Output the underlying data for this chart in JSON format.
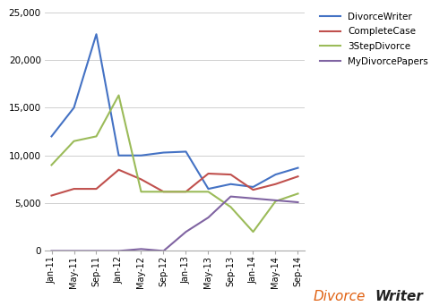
{
  "x_labels": [
    "Jan-11",
    "May-11",
    "Sep-11",
    "Jan-12",
    "May-12",
    "Sep-12",
    "Jan-13",
    "May-13",
    "Sep-13",
    "Jan-14",
    "May-14",
    "Sep-14"
  ],
  "DivorceWriter": [
    12000,
    15000,
    22700,
    10000,
    10000,
    10300,
    10400,
    6500,
    7000,
    6700,
    8000,
    8700
  ],
  "CompleteCase": [
    5800,
    6500,
    6500,
    8500,
    7500,
    6200,
    6200,
    8100,
    8000,
    6400,
    7000,
    7800
  ],
  "3StepDivorce": [
    9000,
    11500,
    12000,
    16300,
    6200,
    6200,
    6200,
    6200,
    4600,
    2000,
    5200,
    6000
  ],
  "MyDivorcePapers": [
    0,
    0,
    0,
    0,
    200,
    0,
    2000,
    3500,
    5700,
    5500,
    5300,
    5100
  ],
  "colors": {
    "DivorceWriter": "#4472C4",
    "CompleteCase": "#C0504D",
    "3StepDivorce": "#9BBB59",
    "MyDivorcePapers": "#8064A2"
  },
  "ylim": [
    0,
    25000
  ],
  "yticks": [
    0,
    5000,
    10000,
    15000,
    20000,
    25000
  ],
  "bg_color": "#FFFFFF",
  "grid_color": "#C8C8C8",
  "watermark_divorce_color": "#E06010",
  "watermark_writer_color": "#222222"
}
